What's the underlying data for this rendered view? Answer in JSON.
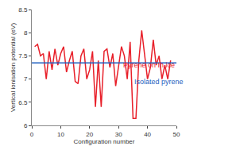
{
  "chart_data": {
    "type": "line",
    "x_label": "Configuration number",
    "y_label": "Vertical ionisation potential (eV)",
    "xlim": [
      0,
      50
    ],
    "xticks": [
      0,
      10,
      20,
      30,
      40,
      50
    ],
    "ylim": [
      6,
      8.5
    ],
    "yticks": [
      6,
      6.5,
      7,
      7.5,
      8,
      8.5
    ],
    "grid": false,
    "series": [
      {
        "name": "Pyrene on Ih ice",
        "color": "#e8202a",
        "x": [
          1,
          2,
          3,
          4,
          5,
          6,
          7,
          8,
          9,
          10,
          11,
          12,
          13,
          14,
          15,
          16,
          17,
          18,
          19,
          20,
          21,
          22,
          23,
          24,
          25,
          26,
          27,
          28,
          29,
          30,
          31,
          32,
          33,
          34,
          35,
          36,
          37,
          38,
          39,
          40,
          41,
          42,
          43,
          44,
          45,
          46,
          47,
          48
        ],
        "values": [
          7.7,
          7.75,
          7.5,
          7.55,
          7.0,
          7.6,
          7.2,
          7.65,
          7.3,
          7.55,
          7.7,
          7.15,
          7.4,
          7.6,
          6.95,
          6.9,
          7.5,
          7.65,
          7.0,
          7.2,
          7.6,
          6.4,
          7.4,
          6.4,
          7.6,
          7.65,
          7.25,
          7.55,
          6.85,
          7.3,
          7.7,
          7.5,
          7.0,
          7.8,
          6.15,
          6.15,
          7.4,
          8.05,
          7.5,
          7.0,
          7.25,
          7.85,
          7.3,
          7.5,
          7.0,
          7.3,
          7.0,
          7.4
        ]
      },
      {
        "name": "Isolated pyrene",
        "color": "#1f5fbf",
        "x": [
          0,
          50
        ],
        "values": [
          7.35,
          7.35
        ]
      }
    ]
  }
}
